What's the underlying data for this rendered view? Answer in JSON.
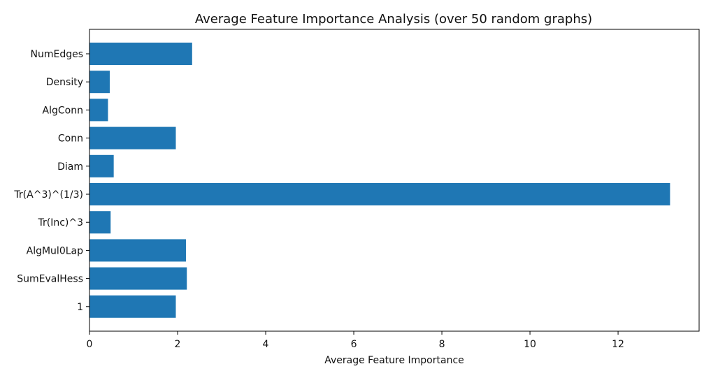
{
  "chart_data": {
    "type": "bar",
    "orientation": "horizontal",
    "title": "Average Feature Importance Analysis (over 50 random graphs)",
    "xlabel": "Average Feature Importance",
    "ylabel": "",
    "categories": [
      "NumEdges",
      "Density",
      "AlgConn",
      "Conn",
      "Diam",
      "Tr(A^3)^(1/3)",
      "Tr(Inc)^3",
      "AlgMul0Lap",
      "SumEvalHess",
      "1"
    ],
    "values": [
      2.33,
      0.46,
      0.42,
      1.96,
      0.55,
      13.18,
      0.48,
      2.19,
      2.21,
      1.96
    ],
    "xlim": [
      0,
      13.84
    ],
    "xticks": [
      0,
      2,
      4,
      6,
      8,
      10,
      12
    ],
    "xtick_labels": [
      "0",
      "2",
      "4",
      "6",
      "8",
      "10",
      "12"
    ],
    "bar_color": "#1f77b4",
    "grid": false,
    "legend": "none"
  }
}
